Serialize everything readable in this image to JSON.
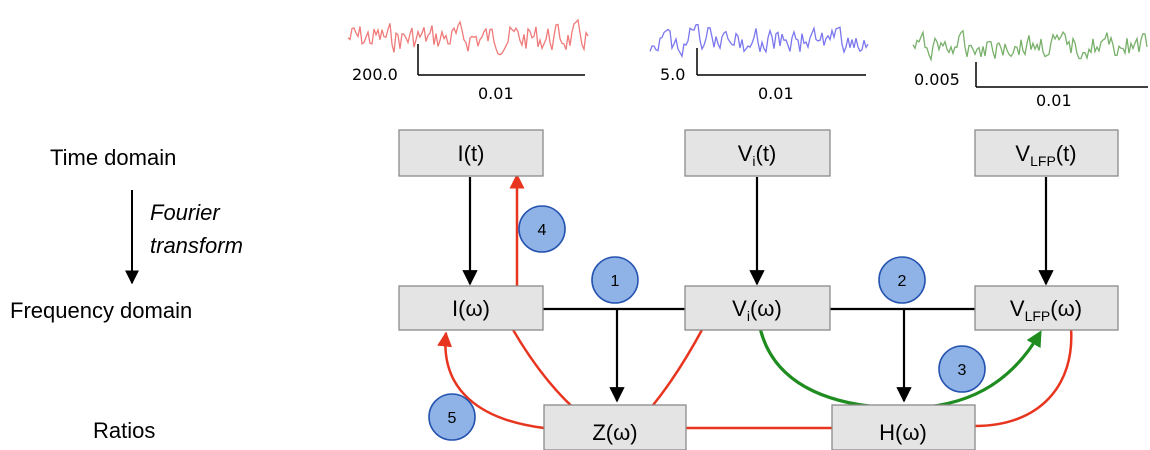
{
  "row_labels": {
    "time_domain": "Time domain",
    "fourier_line1": "Fourier",
    "fourier_line2": "transform",
    "frequency_domain": "Frequency domain",
    "ratios": "Ratios"
  },
  "boxes": {
    "I_t": {
      "main": "I(t)"
    },
    "Vi_t": {
      "main": "V",
      "sub": "i",
      "tail": "(t)"
    },
    "VLFP_t": {
      "main": "V",
      "sub": "LFP",
      "tail": "(t)"
    },
    "I_w": {
      "main": "I(ω)"
    },
    "Vi_w": {
      "main": "V",
      "sub": "i",
      "tail": "(ω)"
    },
    "VLFP_w": {
      "main": "V",
      "sub": "LFP",
      "tail": "(ω)"
    },
    "Z_w": {
      "main": "Z(ω)"
    },
    "H_w": {
      "main": "H(ω)"
    }
  },
  "badges": [
    "1",
    "2",
    "3",
    "4",
    "5"
  ],
  "traces": [
    {
      "color": "#f07a7a",
      "scale_y": "200.0",
      "scale_x": "0.01"
    },
    {
      "color": "#7b77ee",
      "scale_y": "5.0",
      "scale_x": "0.01"
    },
    {
      "color": "#78b06a",
      "scale_y": "0.005",
      "scale_x": "0.01"
    }
  ],
  "colors": {
    "red_arrow": "#e8351f",
    "green_arrow": "#1f8c1f",
    "black": "#000000",
    "badge_fill": "#8fb3e6"
  }
}
